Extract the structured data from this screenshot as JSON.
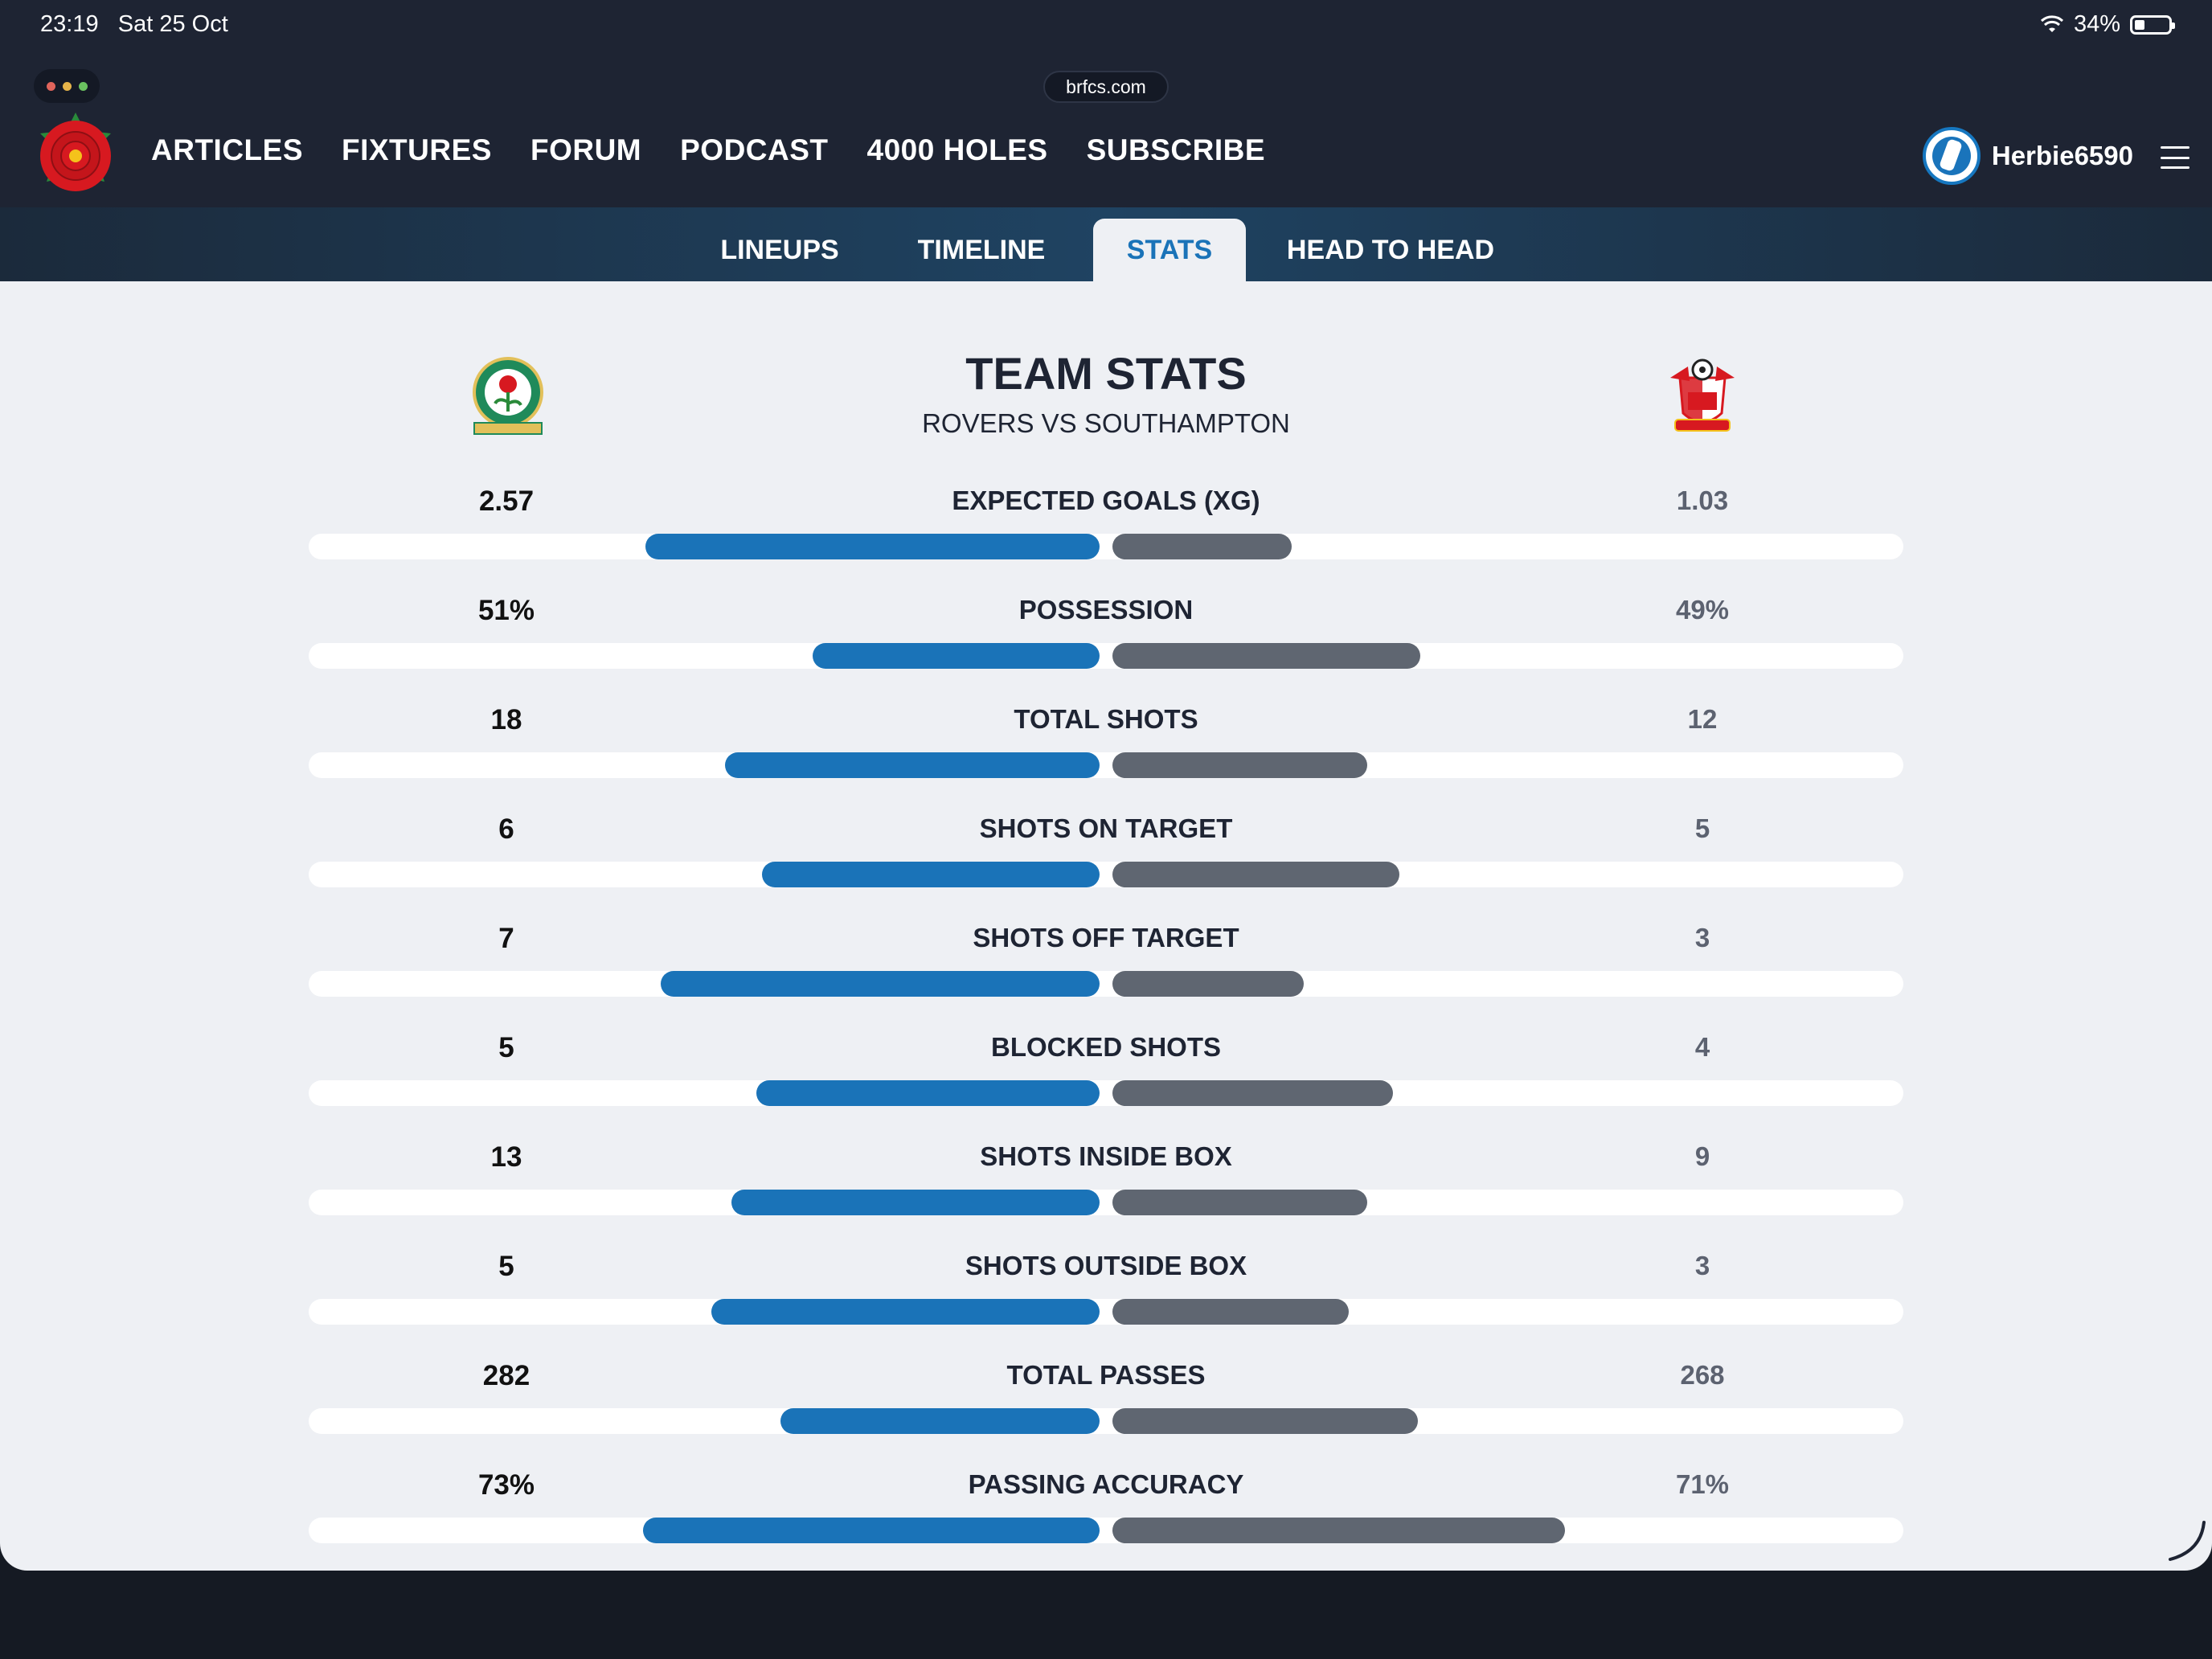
{
  "status_bar": {
    "time": "23:19",
    "date": "Sat 25 Oct",
    "battery": "34%"
  },
  "browser": {
    "url": "brfcs.com",
    "window_dot_colors": [
      "#e0645b",
      "#e6b44a",
      "#6ac160"
    ]
  },
  "nav": {
    "items": [
      "ARTICLES",
      "FIXTURES",
      "FORUM",
      "PODCAST",
      "4000 HOLES",
      "SUBSCRIBE"
    ],
    "username": "Herbie6590"
  },
  "tabs": [
    {
      "label": "LINEUPS",
      "active": false
    },
    {
      "label": "TIMELINE",
      "active": false
    },
    {
      "label": "STATS",
      "active": true
    },
    {
      "label": "HEAD TO HEAD",
      "active": false
    }
  ],
  "team_stats": {
    "title": "TEAM STATS",
    "subtitle": "ROVERS VS SOUTHAMPTON",
    "stats": [
      {
        "label": "EXPECTED GOALS (XG)",
        "home": "2.57",
        "away": "1.03",
        "home_bar": 0.57,
        "away_bar": 0.225
      },
      {
        "label": "POSSESSION",
        "home": "51%",
        "away": "49%",
        "home_bar": 0.36,
        "away_bar": 0.386
      },
      {
        "label": "TOTAL SHOTS",
        "home": "18",
        "away": "12",
        "home_bar": 0.47,
        "away_bar": 0.32
      },
      {
        "label": "SHOTS ON TARGET",
        "home": "6",
        "away": "5",
        "home_bar": 0.423,
        "away_bar": 0.36
      },
      {
        "label": "SHOTS OFF TARGET",
        "home": "7",
        "away": "3",
        "home_bar": 0.55,
        "away_bar": 0.24
      },
      {
        "label": "BLOCKED SHOTS",
        "home": "5",
        "away": "4",
        "home_bar": 0.43,
        "away_bar": 0.352
      },
      {
        "label": "SHOTS INSIDE BOX",
        "home": "13",
        "away": "9",
        "home_bar": 0.462,
        "away_bar": 0.32
      },
      {
        "label": "SHOTS OUTSIDE BOX",
        "home": "5",
        "away": "3",
        "home_bar": 0.487,
        "away_bar": 0.296
      },
      {
        "label": "TOTAL PASSES",
        "home": "282",
        "away": "268",
        "home_bar": 0.4,
        "away_bar": 0.383
      },
      {
        "label": "PASSING ACCURACY",
        "home": "73%",
        "away": "71%",
        "home_bar": 0.573,
        "away_bar": 0.568
      }
    ]
  },
  "colors": {
    "home_bar": "#1a73b8",
    "away_bar": "#5f6671",
    "active_tab_text": "#1a73b8"
  }
}
